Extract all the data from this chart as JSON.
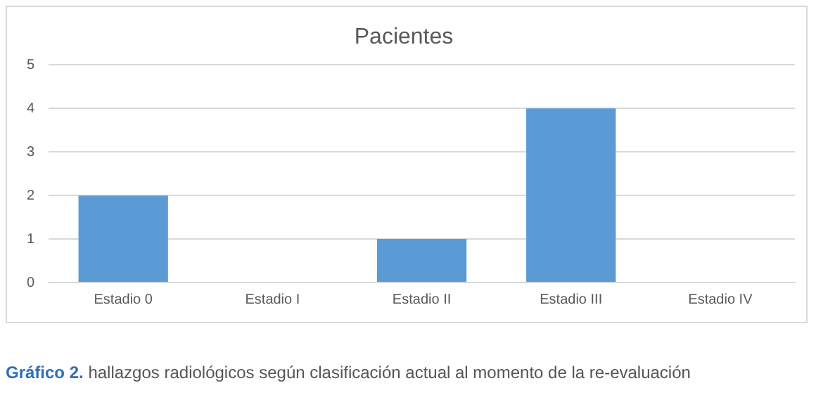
{
  "chart_data": {
    "type": "bar",
    "title": "Pacientes",
    "categories": [
      "Estadio 0",
      "Estadio I",
      "Estadio II",
      "Estadio III",
      "Estadio IV"
    ],
    "values": [
      2,
      0,
      1,
      4,
      0
    ],
    "color": "#5b9bd5",
    "ylim": [
      0,
      5
    ],
    "yticks": [
      0,
      1,
      2,
      3,
      4,
      5
    ],
    "grid": "y",
    "annotations": [
      "Gráfico 2. hallazgos radiológicos según clasificación actual al momento de la re-evaluación"
    ]
  }
}
